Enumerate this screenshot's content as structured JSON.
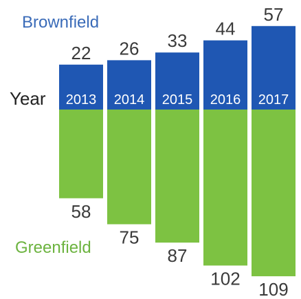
{
  "chart_data": {
    "type": "bar",
    "layout": "diverging",
    "row_label": "Year",
    "categories": [
      "2013",
      "2014",
      "2015",
      "2016",
      "2017"
    ],
    "series": [
      {
        "name": "Brownfield",
        "values": [
          22,
          26,
          33,
          44,
          57
        ],
        "color": "#1f57b3",
        "direction": "up"
      },
      {
        "name": "Greenfield",
        "values": [
          58,
          75,
          87,
          102,
          109
        ],
        "color": "#7dc242",
        "direction": "down"
      }
    ],
    "label_colors": {
      "Brownfield": "#3a6bb8",
      "Greenfield": "#6cb33f"
    },
    "grid": false
  }
}
